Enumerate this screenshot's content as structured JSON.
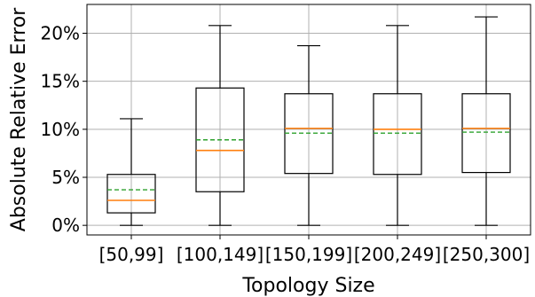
{
  "chart_data": {
    "type": "box",
    "xlabel": "Topology Size",
    "ylabel": "Absolute Relative Error",
    "ylim": [
      -1,
      23
    ],
    "y_ticks": [
      0,
      5,
      10,
      15,
      20
    ],
    "y_tick_labels": [
      "0%",
      "5%",
      "10%",
      "15%",
      "20%"
    ],
    "categories": [
      "[50,99]",
      "[100,149]",
      "[150,199]",
      "[200,249]",
      "[250,300]"
    ],
    "boxes": [
      {
        "whisker_low": 0.0,
        "q1": 1.3,
        "median": 2.6,
        "mean": 3.7,
        "q3": 5.3,
        "whisker_high": 11.1
      },
      {
        "whisker_low": 0.0,
        "q1": 3.5,
        "median": 7.8,
        "mean": 8.9,
        "q3": 14.3,
        "whisker_high": 20.8
      },
      {
        "whisker_low": 0.0,
        "q1": 5.4,
        "median": 10.1,
        "mean": 9.6,
        "q3": 13.7,
        "whisker_high": 18.7
      },
      {
        "whisker_low": 0.0,
        "q1": 5.3,
        "median": 10.0,
        "mean": 9.6,
        "q3": 13.7,
        "whisker_high": 20.8
      },
      {
        "whisker_low": 0.0,
        "q1": 5.5,
        "median": 10.1,
        "mean": 9.7,
        "q3": 13.7,
        "whisker_high": 21.7
      }
    ],
    "grid": true,
    "colors": {
      "median": "#ff7f0e",
      "mean": "#2ca02c",
      "box": "#000000",
      "grid": "#b0b0b0"
    }
  }
}
